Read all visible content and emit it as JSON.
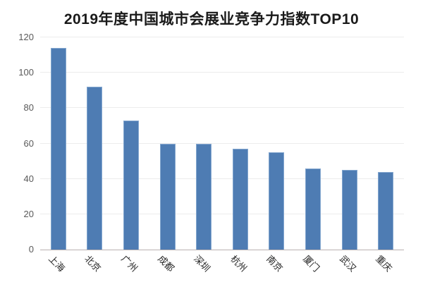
{
  "chart_data": {
    "type": "bar",
    "title": "2019年度中国城市会展业竞争力指数TOP10",
    "categories": [
      "上海",
      "北京",
      "广州",
      "成都",
      "深圳",
      "杭州",
      "南京",
      "厦门",
      "武汉",
      "重庆"
    ],
    "values": [
      114,
      92,
      73,
      60,
      60,
      57,
      55,
      46,
      45,
      44
    ],
    "xlabel": "",
    "ylabel": "",
    "ylim": [
      0,
      120
    ],
    "yticks": [
      0,
      20,
      40,
      60,
      80,
      100,
      120
    ],
    "grid": true,
    "legend": "none",
    "colors": {
      "bar_fill": "#4e7cb3",
      "bar_border": "#84a7cf",
      "gridline": "#ececec",
      "axis_line": "#b9b1b1",
      "y_tick_label": "#595959",
      "x_tick_label": "#262626",
      "title": "#1a1a1a",
      "background": "#ffffff"
    }
  }
}
